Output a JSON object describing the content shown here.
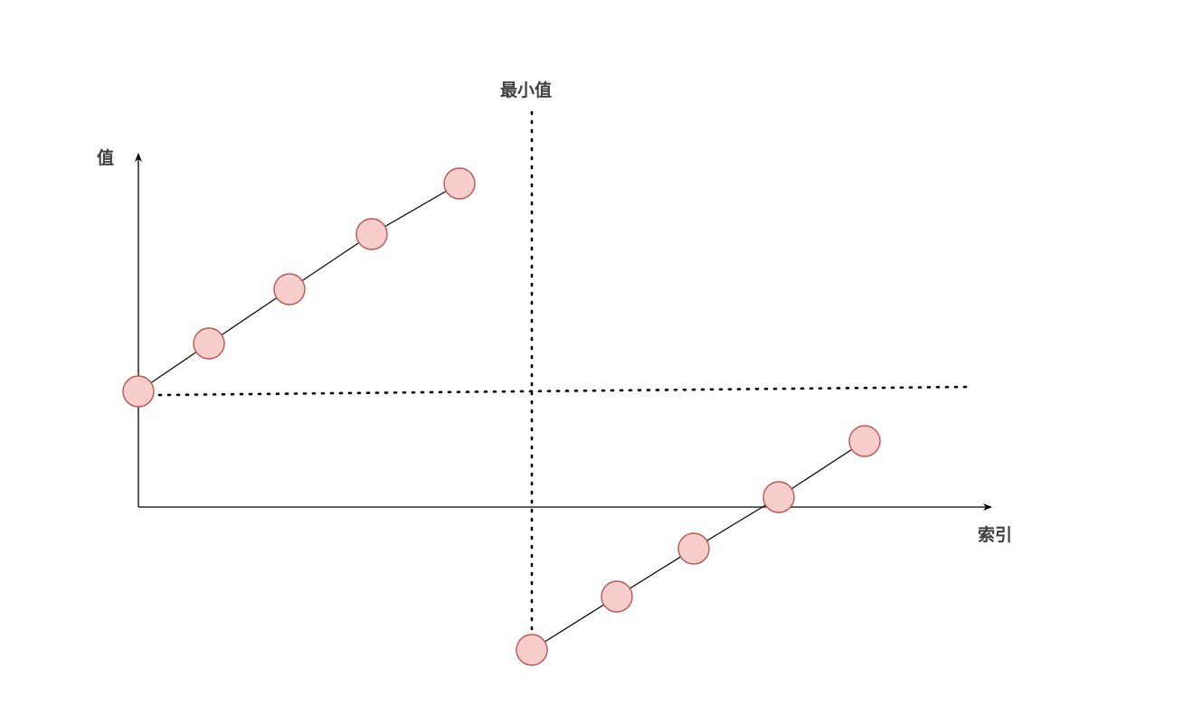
{
  "labels": {
    "y_axis": "值",
    "x_axis": "索引",
    "min_marker": "最小值"
  },
  "colors": {
    "node_fill": "#f8cecc",
    "node_stroke": "#b85450",
    "line": "#000000",
    "text": "#3f3f3f"
  },
  "groups": [
    {
      "name": "",
      "count": 5
    },
    {
      "name": "",
      "count": 5
    }
  ]
}
